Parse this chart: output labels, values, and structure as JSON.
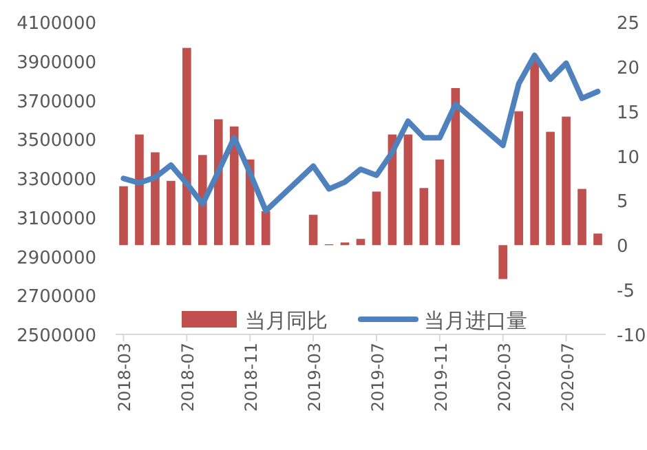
{
  "chart_data": {
    "type": "bar",
    "categories": [
      "2018-03",
      null,
      null,
      null,
      "2018-07",
      null,
      null,
      null,
      "2018-11",
      null,
      null,
      null,
      "2019-03",
      null,
      null,
      null,
      "2019-07",
      null,
      null,
      null,
      "2019-11",
      null,
      null,
      null,
      "2020-03",
      null,
      null,
      null,
      "2020-07",
      null,
      null
    ],
    "series": [
      {
        "name": "当月同比",
        "axis": "y2",
        "color": "#c0504d",
        "values": [
          6.6,
          12.4,
          10.4,
          7.2,
          22.1,
          10.1,
          14.1,
          13.3,
          9.6,
          3.8,
          null,
          null,
          3.4,
          0.1,
          0.3,
          0.7,
          6.0,
          12.4,
          12.4,
          6.4,
          9.6,
          17.6,
          null,
          null,
          -3.8,
          15.0,
          20.9,
          12.7,
          14.4,
          6.3,
          1.3
        ]
      },
      {
        "name": "当月进口量",
        "type": "line",
        "color": "#4f81bd",
        "values": [
          3299000,
          3276000,
          3304000,
          3367000,
          3273000,
          3168000,
          3334000,
          3507000,
          3327000,
          3133000,
          null,
          null,
          3362000,
          3245000,
          3280000,
          3346000,
          3315000,
          3433000,
          3592000,
          3507000,
          3507000,
          3679000,
          null,
          null,
          3468000,
          3784000,
          3929000,
          3807000,
          3889000,
          3709000,
          3744000
        ]
      }
    ],
    "ylim": [
      2500000,
      4100000
    ],
    "yticks": [
      2500000,
      2700000,
      2900000,
      3100000,
      3300000,
      3500000,
      3700000,
      3900000,
      4100000
    ],
    "y2lim": [
      -10,
      25
    ],
    "y2ticks": [
      -10,
      -5,
      0,
      5,
      10,
      15,
      20,
      25
    ],
    "legend": "bottom"
  }
}
